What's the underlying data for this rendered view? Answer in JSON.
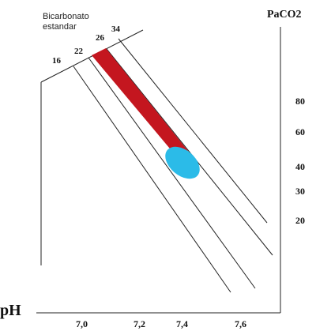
{
  "labels": {
    "bicarbonate_line1": "Bicarbonato",
    "bicarbonate_line2": "estandar",
    "paco2_title": "PaCO2",
    "ph_title": "pH"
  },
  "bicarbonate_scale": [
    "16",
    "22",
    "26",
    "34"
  ],
  "paco2_scale": [
    "80",
    "60",
    "40",
    "30",
    "20"
  ],
  "ph_scale": [
    "7,0",
    "7,2",
    "7,4",
    "7,6"
  ],
  "colors": {
    "highlight_band": "#c4161f",
    "normal_zone": "#2bbbe8",
    "lines": "#222222"
  }
}
